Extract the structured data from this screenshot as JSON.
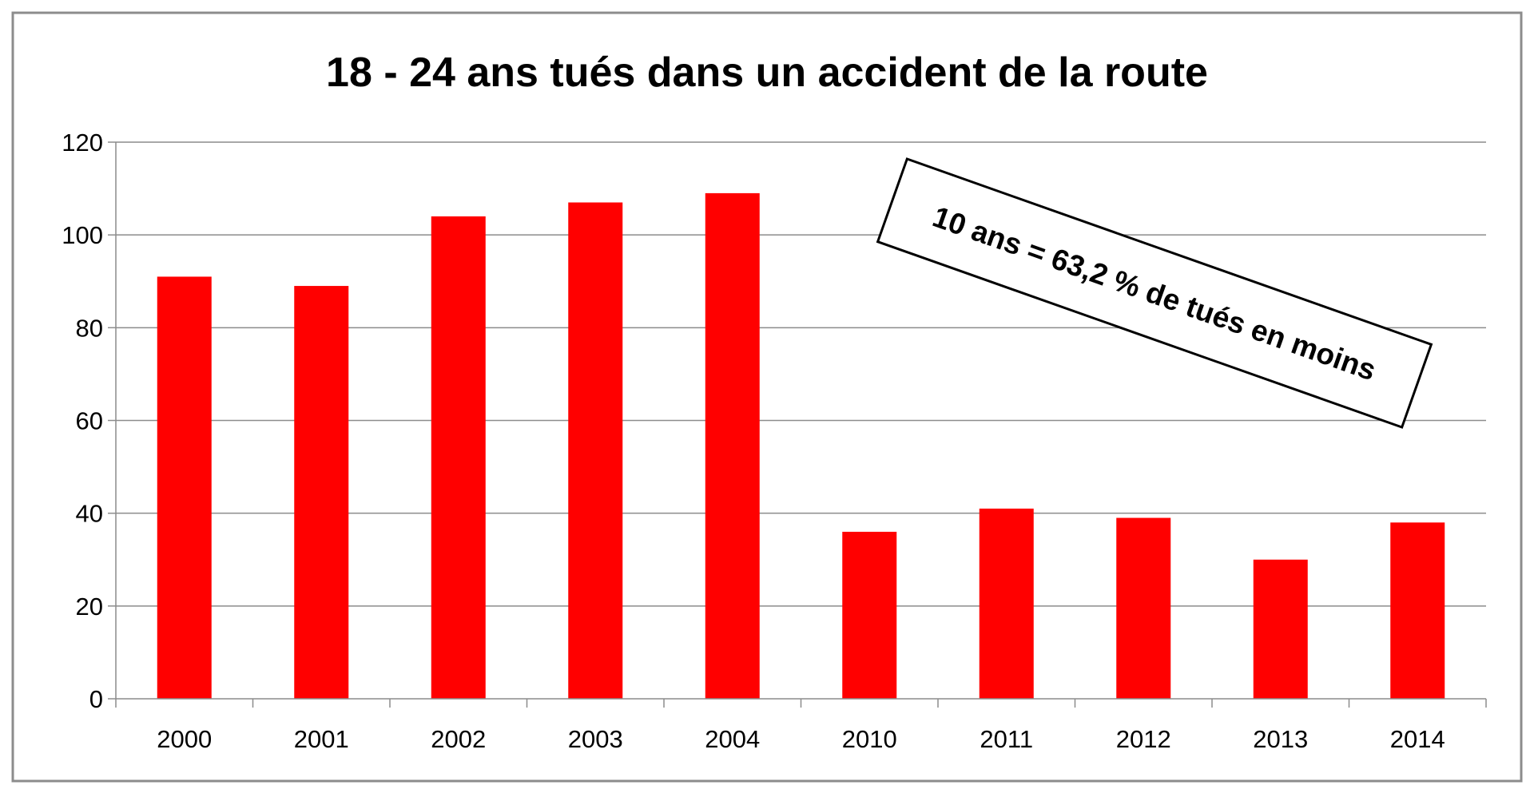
{
  "chart_data": {
    "type": "bar",
    "title": "18 - 24 ans tués dans un accident de la route",
    "xlabel": "",
    "ylabel": "",
    "categories": [
      "2000",
      "2001",
      "2002",
      "2003",
      "2004",
      "2010",
      "2011",
      "2012",
      "2013",
      "2014"
    ],
    "values": [
      91,
      89,
      104,
      107,
      109,
      36,
      41,
      39,
      30,
      38
    ],
    "ylim": [
      0,
      120
    ],
    "yticks": [
      "0",
      "20",
      "40",
      "60",
      "80",
      "100",
      "120"
    ],
    "grid": "horizontal",
    "legend": "none",
    "annotation": "10 ans = 63,2 % de tués en moins",
    "bar_color": "#ff0000",
    "grid_color": "#8c8c8c",
    "border_color": "#8c8c8c"
  }
}
